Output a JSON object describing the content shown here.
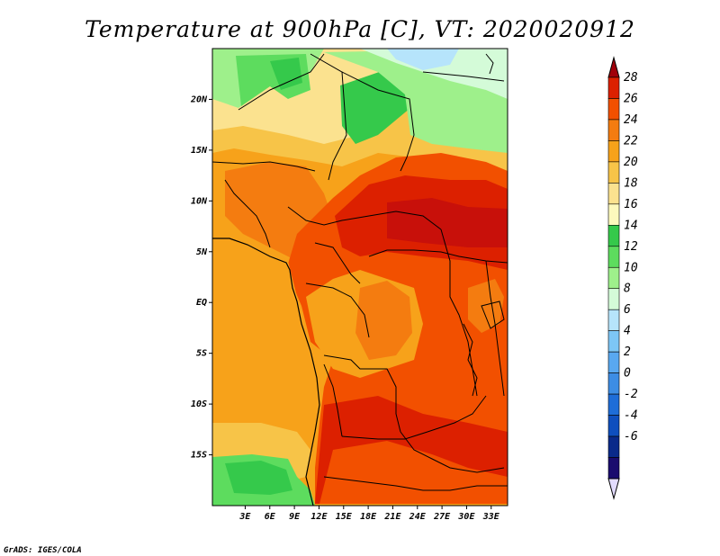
{
  "title": "Temperature at 900hPa [C], VT: 2020020912",
  "credit": "GrADS: IGES/COLA",
  "map": {
    "lon_range": [
      -1,
      35
    ],
    "lat_range": [
      -20,
      25
    ],
    "x_ticks": [
      "3E",
      "6E",
      "9E",
      "12E",
      "15E",
      "18E",
      "21E",
      "24E",
      "27E",
      "30E",
      "33E"
    ],
    "x_tick_values": [
      3,
      6,
      9,
      12,
      15,
      18,
      21,
      24,
      27,
      30,
      33
    ],
    "y_ticks": [
      "20N",
      "15N",
      "10N",
      "5N",
      "EQ",
      "5S",
      "10S",
      "15S"
    ],
    "y_tick_values": [
      20,
      15,
      10,
      5,
      0,
      -5,
      -10,
      -15
    ],
    "field": "temperature",
    "units": "C"
  },
  "colorbar": {
    "labels": [
      "28",
      "26",
      "24",
      "22",
      "20",
      "18",
      "16",
      "14",
      "12",
      "10",
      "8",
      "6",
      "4",
      "2",
      "0",
      "-2",
      "-4",
      "-6"
    ],
    "colors": [
      "#a0000a",
      "#dc2000",
      "#f25000",
      "#f47c10",
      "#f7a21a",
      "#f7c448",
      "#fbe28f",
      "#fdf9bd",
      "#35c94b",
      "#5ddc5e",
      "#9ef08b",
      "#d4fbd8",
      "#b6e4fb",
      "#7dc6f6",
      "#59a8f0",
      "#3d8de4",
      "#1e6dd8",
      "#0f4fbe",
      "#0a2a8a",
      "#1a0c6e",
      "#e3dcff"
    ]
  }
}
